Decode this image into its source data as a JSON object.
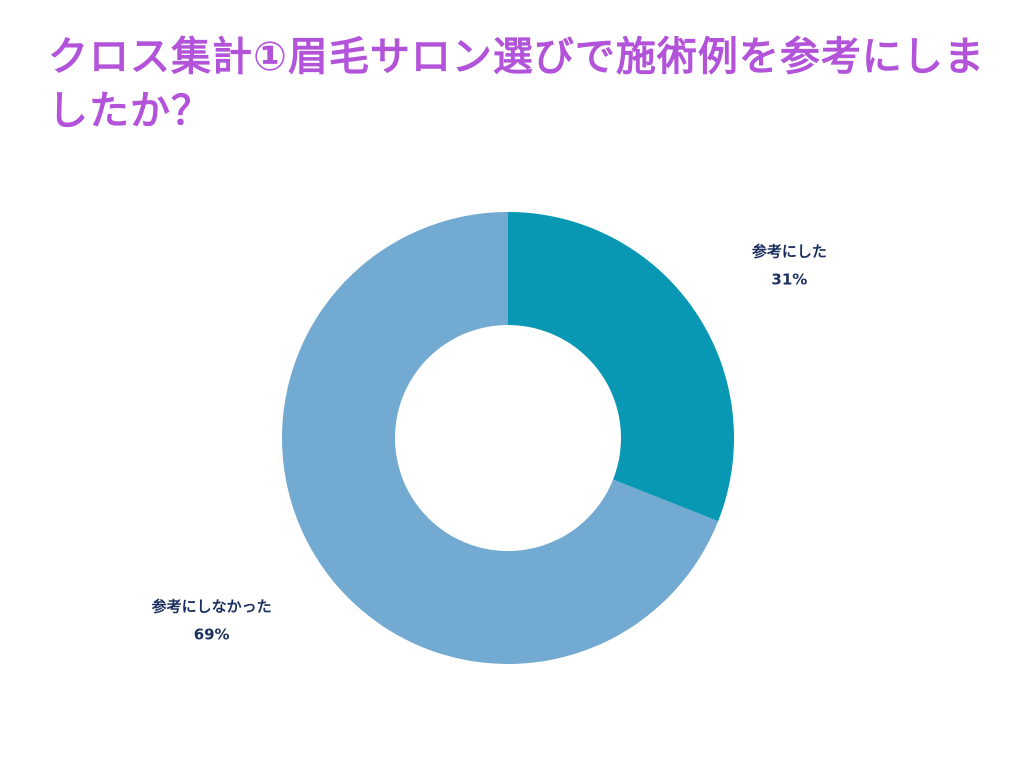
{
  "title": "クロス集計①眉毛サロン選びで施術例を参考にしましたか？",
  "chart_data": {
    "type": "pie",
    "donut": true,
    "start": "top",
    "direction": "clockwise",
    "slices": [
      {
        "label": "参考にした",
        "value": 31,
        "value_label": "31%",
        "color": "#0898b3"
      },
      {
        "label": "参考にしなかった",
        "value": 69,
        "value_label": "69%",
        "color": "#72aad2"
      }
    ]
  }
}
